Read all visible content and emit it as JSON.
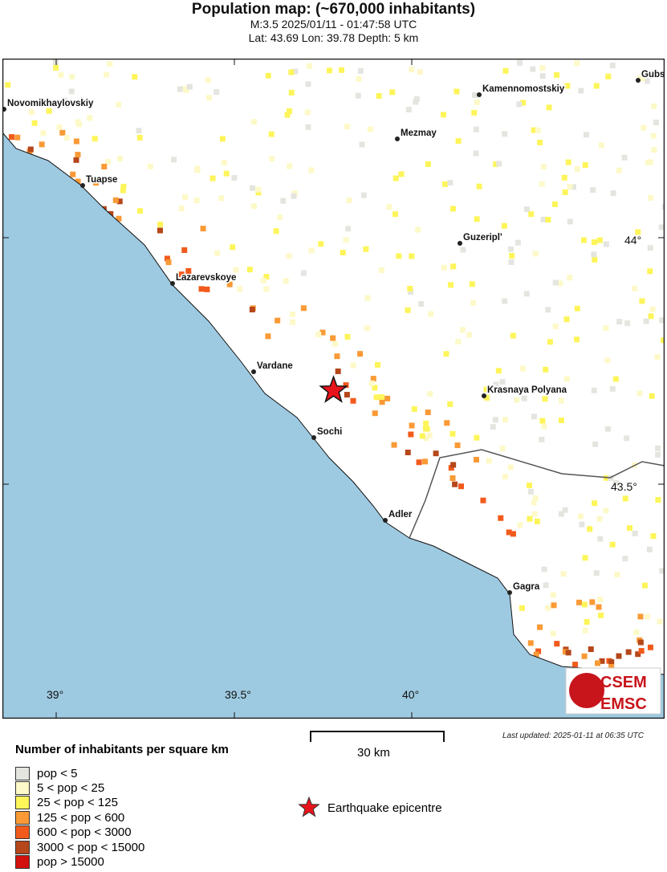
{
  "title": "Population map: (~670,000 inhabitants)",
  "subtitle1": "M:3.5 2025/01/11 - 01:47:58 UTC",
  "subtitle2": "Lat: 43.69 Lon: 39.78 Depth: 5 km",
  "map": {
    "cities": [
      "Novomikhaylovskiy",
      "Tuapse",
      "Kamennomostskiy",
      "Gubs",
      "Mezmay",
      "Guzeripl'",
      "Lazarevskoye",
      "Vardane",
      "Krasnaya Polyana",
      "Sochi",
      "Adler",
      "Gagra"
    ],
    "lon_ticks": [
      "39°",
      "39.5°",
      "40°"
    ],
    "lat_ticks": [
      "44°",
      "43.5°"
    ],
    "epicentre": {
      "lat": 43.69,
      "lon": 39.78
    },
    "colors": {
      "sea": "#9ecae1",
      "land": "#ffffff",
      "border": "#555555",
      "epicentre": "#e8141b"
    },
    "logo": {
      "top": "CSEM",
      "bottom": "EMSC"
    }
  },
  "scale_label": "30 km",
  "last_updated": "Last updated: 2025-01-11 at 06:35 UTC",
  "legend": {
    "title": "Number of inhabitants per square km",
    "items": [
      {
        "label": "pop < 5",
        "color": "#e5e5e0"
      },
      {
        "label": "5 < pop < 25",
        "color": "#fdf9c8"
      },
      {
        "label": "25 < pop < 125",
        "color": "#fdf55a"
      },
      {
        "label": "125 < pop < 600",
        "color": "#f99a36"
      },
      {
        "label": "600 < pop < 3000",
        "color": "#f25a1c"
      },
      {
        "label": "3000 < pop < 15000",
        "color": "#b5471a"
      },
      {
        "label": "pop > 15000",
        "color": "#d2110f"
      }
    ],
    "epicentre_label": "Earthquake epicentre"
  }
}
